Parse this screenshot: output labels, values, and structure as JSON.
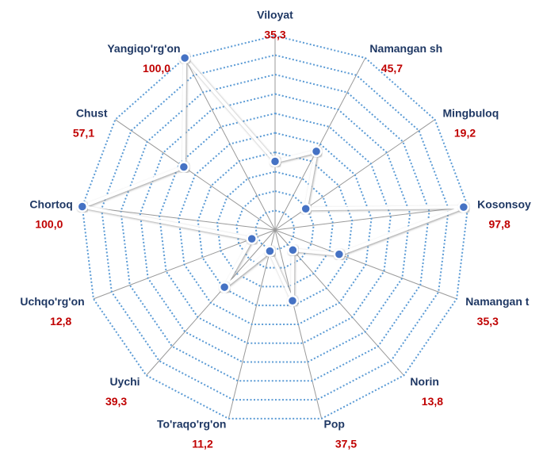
{
  "chart_data": {
    "type": "radar",
    "categories": [
      "Viloyat",
      "Namangan sh",
      "Mingbuloq",
      "Kosonsoy",
      "Namangan t",
      "Norin",
      "Pop",
      "To'raqo'rg'on",
      "Uychi",
      "Uchqo'rg'on",
      "Chortoq",
      "Chust",
      "Yangiqo'rg'on"
    ],
    "values": [
      35.3,
      45.7,
      19.2,
      97.8,
      35.3,
      13.8,
      37.5,
      11.2,
      39.3,
      12.8,
      100.0,
      57.1,
      100.0
    ],
    "value_labels": [
      "35,3",
      "45,7",
      "19,2",
      "97,8",
      "35,3",
      "13,8",
      "37,5",
      "11,2",
      "39,3",
      "12,8",
      "100,0",
      "57,1",
      "100,0"
    ],
    "color": "#4472c4",
    "ylim": [
      0,
      100
    ],
    "yticks": [
      10,
      20,
      30,
      40,
      50,
      60,
      70,
      80,
      90,
      100
    ],
    "grid": true
  }
}
